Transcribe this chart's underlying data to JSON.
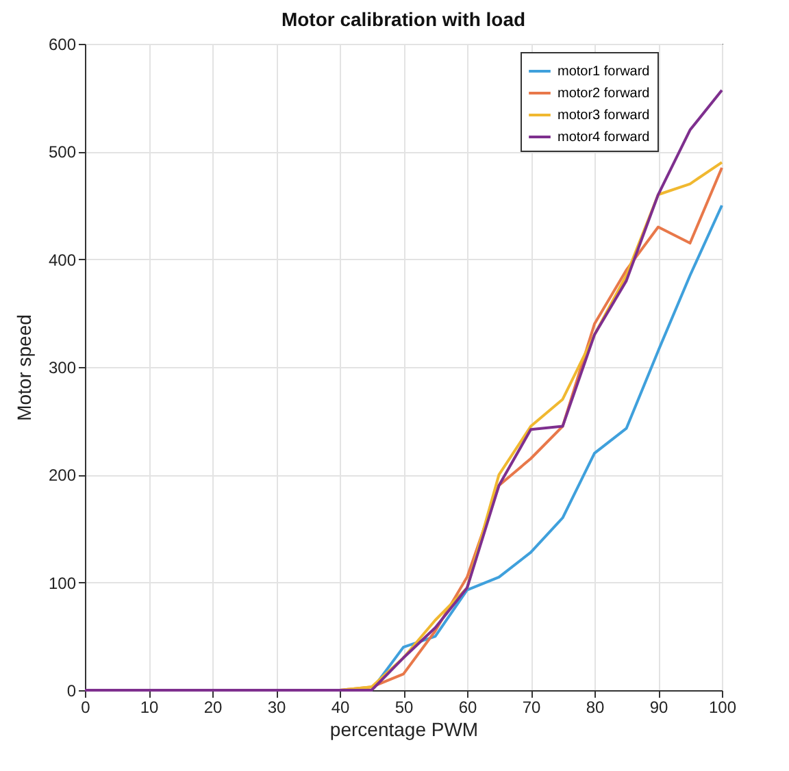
{
  "chart_data": {
    "type": "line",
    "title": "Motor calibration with load",
    "xlabel": "percentage PWM",
    "ylabel": "Motor speed",
    "x": [
      0,
      5,
      10,
      15,
      20,
      25,
      30,
      35,
      40,
      45,
      50,
      55,
      60,
      65,
      70,
      75,
      80,
      85,
      90,
      95,
      100
    ],
    "series": [
      {
        "name": "motor1 forward",
        "color": "#3fa0dc",
        "values": [
          null,
          null,
          null,
          null,
          null,
          null,
          null,
          null,
          0,
          0,
          40,
          50,
          93,
          105,
          128,
          160,
          220,
          243,
          315,
          385,
          450
        ]
      },
      {
        "name": "motor2 forward",
        "color": "#e8784a",
        "values": [
          null,
          null,
          null,
          null,
          null,
          null,
          null,
          0,
          0,
          3,
          15,
          55,
          105,
          190,
          215,
          245,
          340,
          390,
          430,
          415,
          485
        ]
      },
      {
        "name": "motor3 forward",
        "color": "#f0b830",
        "values": [
          null,
          null,
          null,
          null,
          null,
          null,
          null,
          0,
          0,
          3,
          30,
          65,
          95,
          200,
          245,
          270,
          330,
          385,
          460,
          470,
          490
        ]
      },
      {
        "name": "motor4 forward",
        "color": "#7e2f8e",
        "values": [
          0,
          0,
          0,
          0,
          0,
          0,
          0,
          0,
          0,
          0,
          30,
          58,
          95,
          190,
          242,
          245,
          330,
          380,
          460,
          520,
          557
        ]
      }
    ],
    "xlim": [
      0,
      100
    ],
    "xticks": [
      0,
      10,
      20,
      30,
      40,
      50,
      60,
      70,
      80,
      90,
      100
    ],
    "ylim": [
      0,
      600
    ],
    "yticks": [
      0,
      100,
      200,
      300,
      400,
      500,
      600
    ],
    "grid": true,
    "legend": "top right",
    "marker": "none",
    "line_style": "solid"
  }
}
